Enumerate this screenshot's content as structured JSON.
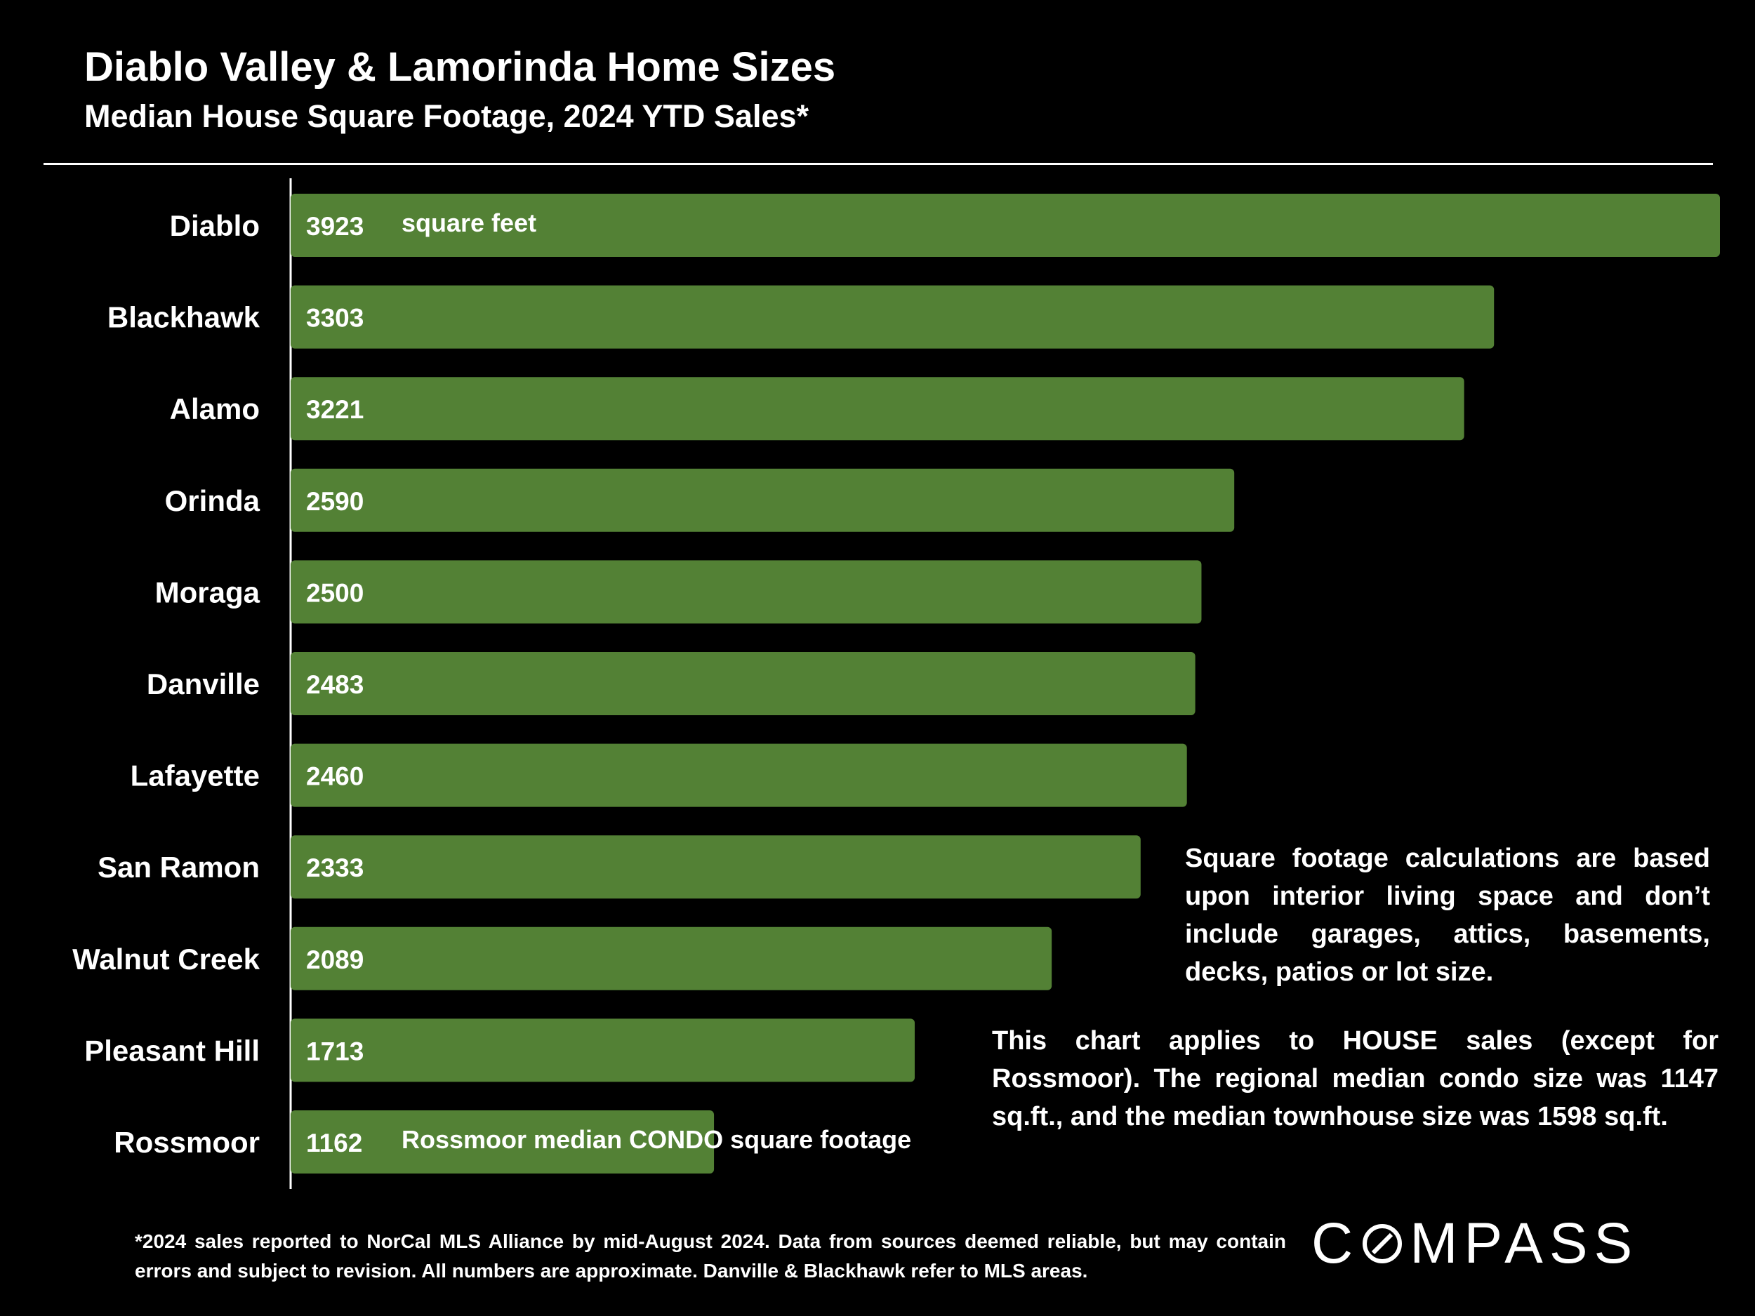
{
  "header": {
    "title": "Diablo Valley & Lamorinda Home Sizes",
    "subtitle": "Median House Square Footage, 2024 YTD Sales*"
  },
  "chart_data": {
    "type": "bar",
    "orientation": "horizontal",
    "title": "Diablo Valley & Lamorinda Home Sizes",
    "subtitle": "Median House Square Footage, 2024 YTD Sales*",
    "xlabel": "",
    "ylabel": "",
    "xlim": [
      0,
      3923
    ],
    "grid": false,
    "categories": [
      "Diablo",
      "Blackhawk",
      "Alamo",
      "Orinda",
      "Moraga",
      "Danville",
      "Lafayette",
      "San Ramon",
      "Walnut Creek",
      "Pleasant Hill",
      "Rossmoor"
    ],
    "values": [
      3923,
      3303,
      3221,
      2590,
      2500,
      2483,
      2460,
      2333,
      2089,
      1713,
      1162
    ],
    "bar_color": "#538135",
    "annotations": [
      {
        "category": "Diablo",
        "text": "square feet"
      },
      {
        "category": "Rossmoor",
        "text": "Rossmoor median CONDO square footage"
      }
    ]
  },
  "notes": {
    "note_1": "Square footage calculations are based upon interior living space and don’t include garages, attics, basements, decks, patios or lot size.",
    "note_2": "This chart applies to HOUSE sales (except for Rossmoor). The regional median condo size was 1147 sq.ft., and the median townhouse size was 1598 sq.ft."
  },
  "footnote": "*2024 sales reported to NorCal MLS Alliance by mid-August 2024. Data from sources deemed reliable, but may contain errors and subject to revision. All numbers are approximate. Danville & Blackhawk refer to MLS areas.",
  "logo": {
    "left": "C",
    "right": "MPASS"
  }
}
